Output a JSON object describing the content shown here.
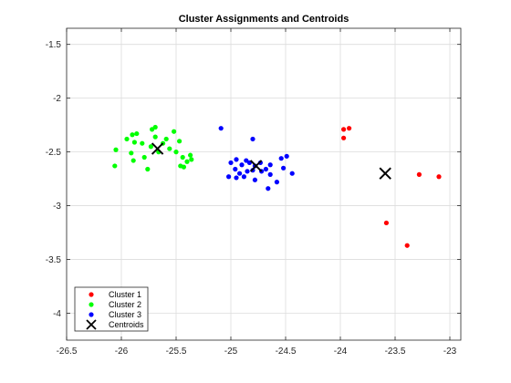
{
  "chart_data": {
    "type": "scatter",
    "title": "Cluster Assignments and Centroids",
    "xlabel": "",
    "ylabel": "",
    "xlim": [
      -26.5,
      -22.9
    ],
    "ylim": [
      -4.25,
      -1.35
    ],
    "x_ticks": [
      -26.5,
      -26,
      -25.5,
      -25,
      -24.5,
      -24,
      -23.5,
      -23
    ],
    "x_tick_labels": [
      "-26.5",
      "-26",
      "-25.5",
      "-25",
      "-24.5",
      "-24",
      "-23.5",
      "-23"
    ],
    "y_ticks": [
      -1.5,
      -2,
      -2.5,
      -3,
      -3.5,
      -4
    ],
    "y_tick_labels": [
      "-1.5",
      "-2",
      "-2.5",
      "-3",
      "-3.5",
      "-4"
    ],
    "grid": true,
    "legend_position": "bottom-left",
    "series": [
      {
        "name": "Cluster 1",
        "color": "#ff0000",
        "marker": "dot",
        "points": [
          [
            -23.97,
            -2.29
          ],
          [
            -23.92,
            -2.28
          ],
          [
            -23.97,
            -2.37
          ],
          [
            -23.28,
            -2.71
          ],
          [
            -23.1,
            -2.73
          ],
          [
            -23.58,
            -3.16
          ],
          [
            -23.39,
            -3.37
          ]
        ]
      },
      {
        "name": "Cluster 2",
        "color": "#00ff00",
        "marker": "dot",
        "points": [
          [
            -26.05,
            -2.48
          ],
          [
            -26.06,
            -2.63
          ],
          [
            -25.95,
            -2.38
          ],
          [
            -25.9,
            -2.34
          ],
          [
            -25.86,
            -2.33
          ],
          [
            -25.88,
            -2.41
          ],
          [
            -25.91,
            -2.51
          ],
          [
            -25.89,
            -2.58
          ],
          [
            -25.81,
            -2.42
          ],
          [
            -25.79,
            -2.55
          ],
          [
            -25.76,
            -2.66
          ],
          [
            -25.72,
            -2.29
          ],
          [
            -25.69,
            -2.27
          ],
          [
            -25.69,
            -2.36
          ],
          [
            -25.73,
            -2.45
          ],
          [
            -25.66,
            -2.5
          ],
          [
            -25.62,
            -2.42
          ],
          [
            -25.59,
            -2.38
          ],
          [
            -25.56,
            -2.47
          ],
          [
            -25.52,
            -2.31
          ],
          [
            -25.47,
            -2.4
          ],
          [
            -25.5,
            -2.5
          ],
          [
            -25.44,
            -2.55
          ],
          [
            -25.4,
            -2.59
          ],
          [
            -25.37,
            -2.53
          ],
          [
            -25.36,
            -2.57
          ],
          [
            -25.46,
            -2.63
          ],
          [
            -25.43,
            -2.64
          ]
        ]
      },
      {
        "name": "Cluster 3",
        "color": "#0000ff",
        "marker": "dot",
        "points": [
          [
            -25.09,
            -2.28
          ],
          [
            -24.8,
            -2.38
          ],
          [
            -25.0,
            -2.6
          ],
          [
            -24.95,
            -2.57
          ],
          [
            -24.9,
            -2.62
          ],
          [
            -24.86,
            -2.58
          ],
          [
            -24.83,
            -2.6
          ],
          [
            -24.78,
            -2.63
          ],
          [
            -24.73,
            -2.6
          ],
          [
            -24.96,
            -2.66
          ],
          [
            -24.92,
            -2.7
          ],
          [
            -24.85,
            -2.68
          ],
          [
            -24.8,
            -2.67
          ],
          [
            -24.72,
            -2.68
          ],
          [
            -24.64,
            -2.62
          ],
          [
            -24.68,
            -2.66
          ],
          [
            -24.54,
            -2.56
          ],
          [
            -24.49,
            -2.54
          ],
          [
            -24.52,
            -2.65
          ],
          [
            -24.44,
            -2.7
          ],
          [
            -25.02,
            -2.73
          ],
          [
            -24.95,
            -2.74
          ],
          [
            -24.88,
            -2.73
          ],
          [
            -24.78,
            -2.76
          ],
          [
            -24.64,
            -2.71
          ],
          [
            -24.58,
            -2.78
          ],
          [
            -24.66,
            -2.84
          ]
        ]
      },
      {
        "name": "Centroids",
        "color": "#000000",
        "marker": "x",
        "points": [
          [
            -25.67,
            -2.47
          ],
          [
            -24.77,
            -2.63
          ],
          [
            -23.59,
            -2.7
          ]
        ]
      }
    ]
  }
}
